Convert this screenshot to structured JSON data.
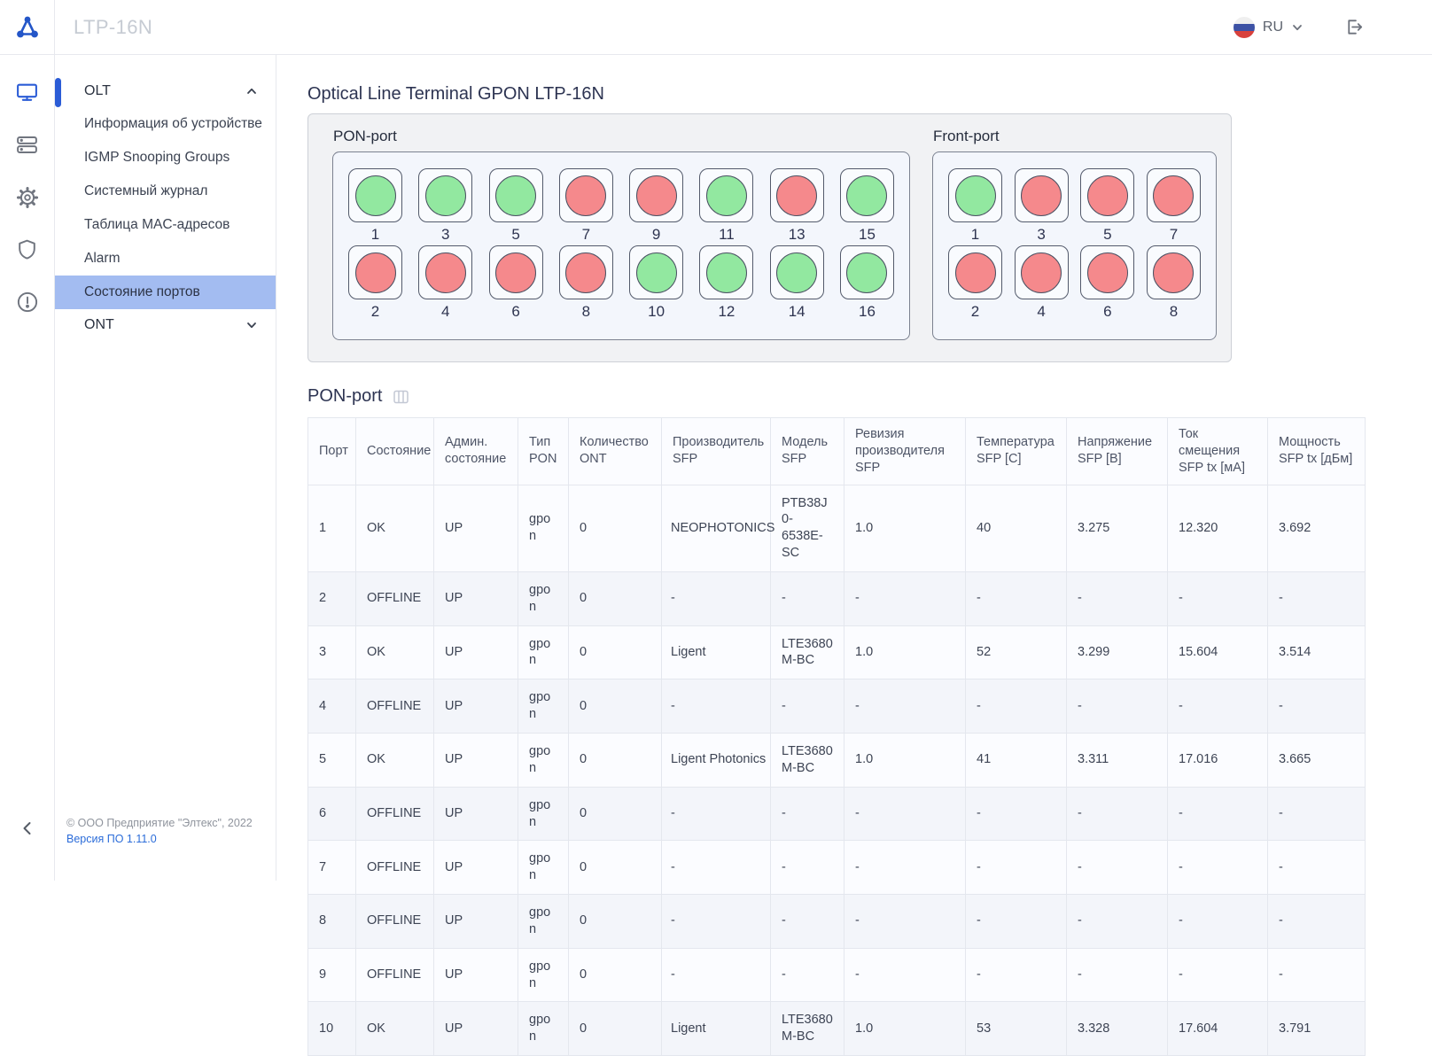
{
  "header": {
    "title": "LTP-16N",
    "lang_label": "RU"
  },
  "sidebar": {
    "olt": {
      "label": "OLT",
      "expanded": true,
      "items": [
        {
          "id": "device-info",
          "label": "Информация об устройстве",
          "active": false
        },
        {
          "id": "igmp-snooping-groups",
          "label": "IGMP Snooping Groups",
          "active": false
        },
        {
          "id": "system-log",
          "label": "Системный журнал",
          "active": false
        },
        {
          "id": "mac-table",
          "label": "Таблица MAC-адресов",
          "active": false
        },
        {
          "id": "alarm",
          "label": "Alarm",
          "active": false
        },
        {
          "id": "port-status",
          "label": "Состояние портов",
          "active": true
        }
      ]
    },
    "ont": {
      "label": "ONT",
      "expanded": false
    },
    "footer": {
      "copyright": "© ООО Предприятие \"Элтекс\", 2022",
      "version": "Версия ПО 1.11.0"
    }
  },
  "main": {
    "title": "Optical Line Terminal GPON LTP-16N",
    "pon_panel": {
      "title": "PON-port",
      "rows": [
        [
          {
            "num": "1",
            "state": "ok"
          },
          {
            "num": "3",
            "state": "ok"
          },
          {
            "num": "5",
            "state": "ok"
          },
          {
            "num": "7",
            "state": "fail"
          },
          {
            "num": "9",
            "state": "fail"
          },
          {
            "num": "11",
            "state": "ok"
          },
          {
            "num": "13",
            "state": "fail"
          },
          {
            "num": "15",
            "state": "ok"
          }
        ],
        [
          {
            "num": "2",
            "state": "fail"
          },
          {
            "num": "4",
            "state": "fail"
          },
          {
            "num": "6",
            "state": "fail"
          },
          {
            "num": "8",
            "state": "fail"
          },
          {
            "num": "10",
            "state": "ok"
          },
          {
            "num": "12",
            "state": "ok"
          },
          {
            "num": "14",
            "state": "ok"
          },
          {
            "num": "16",
            "state": "ok"
          }
        ]
      ]
    },
    "front_panel": {
      "title": "Front-port",
      "rows": [
        [
          {
            "num": "1",
            "state": "ok"
          },
          {
            "num": "3",
            "state": "fail"
          },
          {
            "num": "5",
            "state": "fail"
          },
          {
            "num": "7",
            "state": "fail"
          }
        ],
        [
          {
            "num": "2",
            "state": "fail"
          },
          {
            "num": "4",
            "state": "fail"
          },
          {
            "num": "6",
            "state": "fail"
          },
          {
            "num": "8",
            "state": "fail"
          }
        ]
      ]
    },
    "table": {
      "title": "PON-port",
      "columns": [
        "Порт",
        "Состояние",
        "Админ. состояние",
        "Тип PON",
        "Количество ONT",
        "Производитель SFP",
        "Модель SFP",
        "Ревизия производителя SFP",
        "Температура SFP [C]",
        "Напряжение SFP [B]",
        "Ток смещения SFP tx [мА]",
        "Мощность SFP tx [дБм]"
      ],
      "rows": [
        [
          "1",
          "OK",
          "UP",
          "gpon",
          "0",
          "NEOPHOTONICS",
          "PTB38J0-6538E-SC",
          "1.0",
          "40",
          "3.275",
          "12.320",
          "3.692"
        ],
        [
          "2",
          "OFFLINE",
          "UP",
          "gpon",
          "0",
          "-",
          "-",
          "-",
          "-",
          "-",
          "-",
          "-"
        ],
        [
          "3",
          "OK",
          "UP",
          "gpon",
          "0",
          "Ligent",
          "LTE3680M-BC",
          "1.0",
          "52",
          "3.299",
          "15.604",
          "3.514"
        ],
        [
          "4",
          "OFFLINE",
          "UP",
          "gpon",
          "0",
          "-",
          "-",
          "-",
          "-",
          "-",
          "-",
          "-"
        ],
        [
          "5",
          "OK",
          "UP",
          "gpon",
          "0",
          "Ligent Photonics",
          "LTE3680M-BC",
          "1.0",
          "41",
          "3.311",
          "17.016",
          "3.665"
        ],
        [
          "6",
          "OFFLINE",
          "UP",
          "gpon",
          "0",
          "-",
          "-",
          "-",
          "-",
          "-",
          "-",
          "-"
        ],
        [
          "7",
          "OFFLINE",
          "UP",
          "gpon",
          "0",
          "-",
          "-",
          "-",
          "-",
          "-",
          "-",
          "-"
        ],
        [
          "8",
          "OFFLINE",
          "UP",
          "gpon",
          "0",
          "-",
          "-",
          "-",
          "-",
          "-",
          "-",
          "-"
        ],
        [
          "9",
          "OFFLINE",
          "UP",
          "gpon",
          "0",
          "-",
          "-",
          "-",
          "-",
          "-",
          "-",
          "-"
        ],
        [
          "10",
          "OK",
          "UP",
          "gpon",
          "0",
          "Ligent",
          "LTE3680M-BC",
          "1.0",
          "53",
          "3.328",
          "17.604",
          "3.791"
        ]
      ]
    }
  },
  "colors": {
    "led_ok": "#92e8a0",
    "led_fail": "#f5898c",
    "accent": "#2b5cd6",
    "selected_item": "#a3bcf1"
  }
}
